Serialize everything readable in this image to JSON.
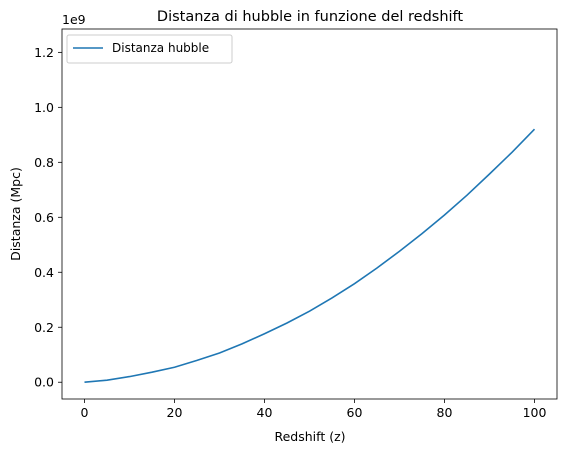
{
  "chart_data": {
    "type": "line",
    "title": "Distanza di hubble in funzione del redshift",
    "xlabel": "Redshift (z)",
    "ylabel": "Distanza (Mpc)",
    "y_offset_label": "1e9",
    "xlim": [
      -5,
      105
    ],
    "ylim": [
      -0.061,
      1.285
    ],
    "y_scale_factor": 1000000000,
    "x_ticks": [
      0,
      20,
      40,
      60,
      80,
      100
    ],
    "x_tick_labels": [
      "0",
      "20",
      "40",
      "60",
      "80",
      "100"
    ],
    "y_ticks": [
      0.0,
      0.2,
      0.4,
      0.6,
      0.8,
      1.0,
      1.2
    ],
    "y_tick_labels": [
      "0.0",
      "0.2",
      "0.4",
      "0.6",
      "0.8",
      "1.0",
      "1.2"
    ],
    "grid": false,
    "legend_position": "top-left",
    "series": [
      {
        "name": "Distanza hubble",
        "color": "#1f77b4",
        "x": [
          0,
          5,
          10,
          15,
          20,
          25,
          30,
          35,
          40,
          45,
          50,
          55,
          60,
          65,
          70,
          75,
          80,
          85,
          90,
          95,
          100
        ],
        "y": [
          0.0,
          0.0075,
          0.0205,
          0.0365,
          0.0545,
          0.0795,
          0.1065,
          0.1395,
          0.1765,
          0.2155,
          0.2585,
          0.3065,
          0.3585,
          0.4155,
          0.4765,
          0.5405,
          0.6085,
          0.6805,
          0.7575,
          0.8365,
          0.9205
        ]
      }
    ]
  }
}
